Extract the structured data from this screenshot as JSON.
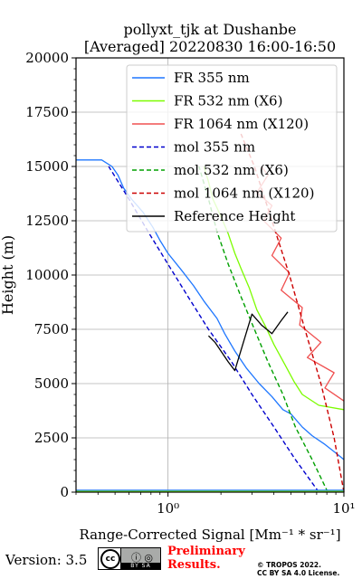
{
  "chart_data": {
    "type": "line",
    "title": [
      "pollyxt_tjk at Dushanbe",
      "[Averaged] 20220830 16:00-16:50"
    ],
    "xlabel": "Range-Corrected Signal [Mm⁻¹ * sr⁻¹]",
    "ylabel": "Height (m)",
    "xscale": "log",
    "xlim": [
      0.3,
      10
    ],
    "ylim": [
      0,
      20000
    ],
    "x_ticks": [
      1,
      10
    ],
    "x_tick_labels": [
      "10⁰",
      "10¹"
    ],
    "y_ticks": [
      0,
      2500,
      5000,
      7500,
      10000,
      12500,
      15000,
      17500,
      20000
    ],
    "y_tick_labels": [
      "0",
      "2500",
      "5000",
      "7500",
      "10000",
      "12500",
      "15000",
      "17500",
      "20000"
    ],
    "grid": true,
    "legend_position": "upper-right",
    "series": [
      {
        "name": "FR 355 nm",
        "color": "#1f77ff",
        "style": "solid",
        "points": [
          [
            10.0,
            1500
          ],
          [
            9.0,
            1800
          ],
          [
            7.8,
            2200
          ],
          [
            6.6,
            2600
          ],
          [
            5.8,
            3000
          ],
          [
            5.0,
            3600
          ],
          [
            4.5,
            3800
          ],
          [
            3.9,
            4400
          ],
          [
            3.3,
            5000
          ],
          [
            2.8,
            5700
          ],
          [
            2.4,
            6500
          ],
          [
            2.1,
            7300
          ],
          [
            1.9,
            8000
          ],
          [
            1.6,
            8800
          ],
          [
            1.4,
            9500
          ],
          [
            1.2,
            10200
          ],
          [
            1.0,
            11000
          ],
          [
            0.9,
            11600
          ],
          [
            0.82,
            12200
          ],
          [
            0.72,
            12900
          ],
          [
            0.62,
            13500
          ],
          [
            0.56,
            14000
          ],
          [
            0.52,
            14600
          ],
          [
            0.48,
            15000
          ],
          [
            0.42,
            15300
          ],
          [
            0.3,
            15300
          ]
        ]
      },
      {
        "name": "FR 532 nm (X6)",
        "color": "#7cfc00",
        "style": "solid",
        "points": [
          [
            10.0,
            3800
          ],
          [
            7.2,
            4000
          ],
          [
            5.8,
            4500
          ],
          [
            5.2,
            5100
          ],
          [
            4.6,
            5900
          ],
          [
            4.0,
            6800
          ],
          [
            3.6,
            7600
          ],
          [
            3.2,
            8400
          ],
          [
            2.9,
            9400
          ],
          [
            2.6,
            10300
          ],
          [
            2.4,
            11000
          ],
          [
            2.2,
            11900
          ],
          [
            2.0,
            12700
          ],
          [
            1.8,
            13500
          ],
          [
            1.7,
            14300
          ],
          [
            1.6,
            15000
          ]
        ]
      },
      {
        "name": "FR 1064 nm (X120)",
        "color": "#f05050",
        "style": "solid",
        "points": [
          [
            10.0,
            4200
          ],
          [
            7.8,
            4800
          ],
          [
            8.8,
            5500
          ],
          [
            6.2,
            6200
          ],
          [
            7.4,
            6900
          ],
          [
            5.6,
            7700
          ],
          [
            5.8,
            8500
          ],
          [
            4.4,
            9300
          ],
          [
            4.9,
            10100
          ],
          [
            3.9,
            10900
          ],
          [
            4.4,
            11700
          ],
          [
            3.5,
            12500
          ],
          [
            3.9,
            13200
          ],
          [
            3.2,
            13800
          ],
          [
            3.7,
            14600
          ],
          [
            3.4,
            15000
          ]
        ]
      },
      {
        "name": "mol 355 nm",
        "color": "#0000cd",
        "style": "dashed",
        "points": [
          [
            7.2,
            0
          ],
          [
            5.3,
            1500
          ],
          [
            4.0,
            3000
          ],
          [
            3.0,
            4500
          ],
          [
            2.3,
            6000
          ],
          [
            1.7,
            7500
          ],
          [
            1.3,
            9000
          ],
          [
            1.0,
            10500
          ],
          [
            0.77,
            12000
          ],
          [
            0.6,
            13500
          ],
          [
            0.46,
            15000
          ]
        ]
      },
      {
        "name": "mol 532 nm (X6)",
        "color": "#00a000",
        "style": "dashed",
        "points": [
          [
            8.1,
            0
          ],
          [
            6.6,
            1500
          ],
          [
            5.3,
            3000
          ],
          [
            4.5,
            4500
          ],
          [
            3.7,
            6000
          ],
          [
            3.1,
            7500
          ],
          [
            2.6,
            9000
          ],
          [
            2.2,
            10500
          ],
          [
            1.9,
            12000
          ],
          [
            1.7,
            13500
          ],
          [
            1.5,
            15000
          ]
        ]
      },
      {
        "name": "mol 1064 nm (X120)",
        "color": "#cc0000",
        "style": "dashed",
        "points": [
          [
            10.0,
            0
          ],
          [
            8.8,
            2500
          ],
          [
            7.4,
            5000
          ],
          [
            6.0,
            7500
          ],
          [
            4.9,
            10000
          ],
          [
            3.9,
            12500
          ],
          [
            3.1,
            15000
          ],
          [
            2.6,
            16500
          ]
        ]
      },
      {
        "name": "Reference Height",
        "color": "#000000",
        "style": "solid",
        "points": [
          [
            1.7,
            7200
          ],
          [
            1.85,
            6900
          ],
          [
            2.0,
            6500
          ],
          [
            2.2,
            6000
          ],
          [
            2.4,
            5600
          ],
          [
            3.0,
            8200
          ],
          [
            3.4,
            7700
          ],
          [
            3.9,
            7300
          ],
          [
            4.4,
            7900
          ],
          [
            4.8,
            8300
          ]
        ]
      }
    ]
  },
  "footer": {
    "version": "Version: 3.5",
    "cc_label": "cc",
    "cc_icons": "ⓘ ◎",
    "cc_strip": "BY SA",
    "preliminary": "Preliminary Results.",
    "copyright": "© TROPOS 2022.",
    "license": "CC BY SA 4.0 License."
  }
}
